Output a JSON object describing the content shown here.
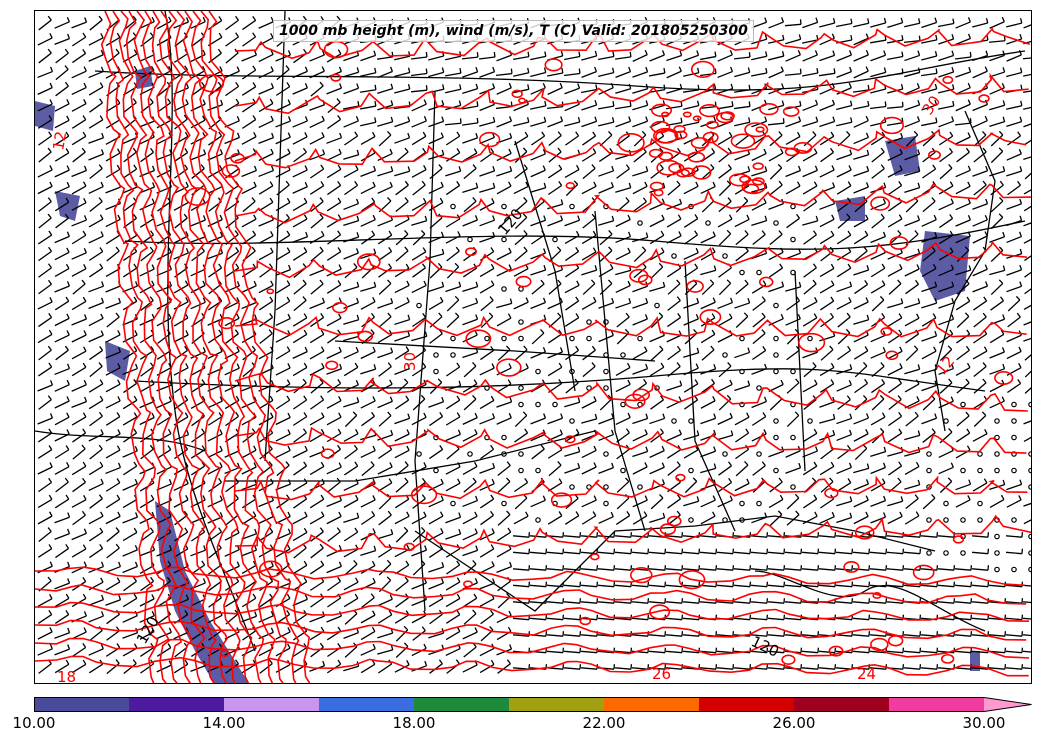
{
  "title": "1000 mb height (m), wind (m/s), T (C) Valid: 201805250300",
  "map": {
    "fields": [
      "1000 mb height",
      "wind barbs",
      "temperature"
    ],
    "contour_colors": {
      "temperature": "#ff0000",
      "height": "#000000",
      "borders": "#000000"
    },
    "height_labels": [
      "120",
      "120",
      "120"
    ],
    "temperature_labels": [
      "18",
      "24",
      "26",
      "30",
      "12",
      "12",
      "30"
    ]
  },
  "colorbar": {
    "colors": [
      "#4a4a9a",
      "#4d1aa0",
      "#c896f0",
      "#3a6ee0",
      "#1e8a3c",
      "#a0a010",
      "#ff6a00",
      "#d40000",
      "#a00020",
      "#f03ca0",
      "#ff9ad0"
    ],
    "tick_labels": [
      "10.00",
      "14.00",
      "18.00",
      "22.00",
      "26.00",
      "30.00"
    ],
    "tick_values": [
      10,
      14,
      18,
      22,
      26,
      30
    ],
    "range": [
      10,
      31
    ]
  }
}
